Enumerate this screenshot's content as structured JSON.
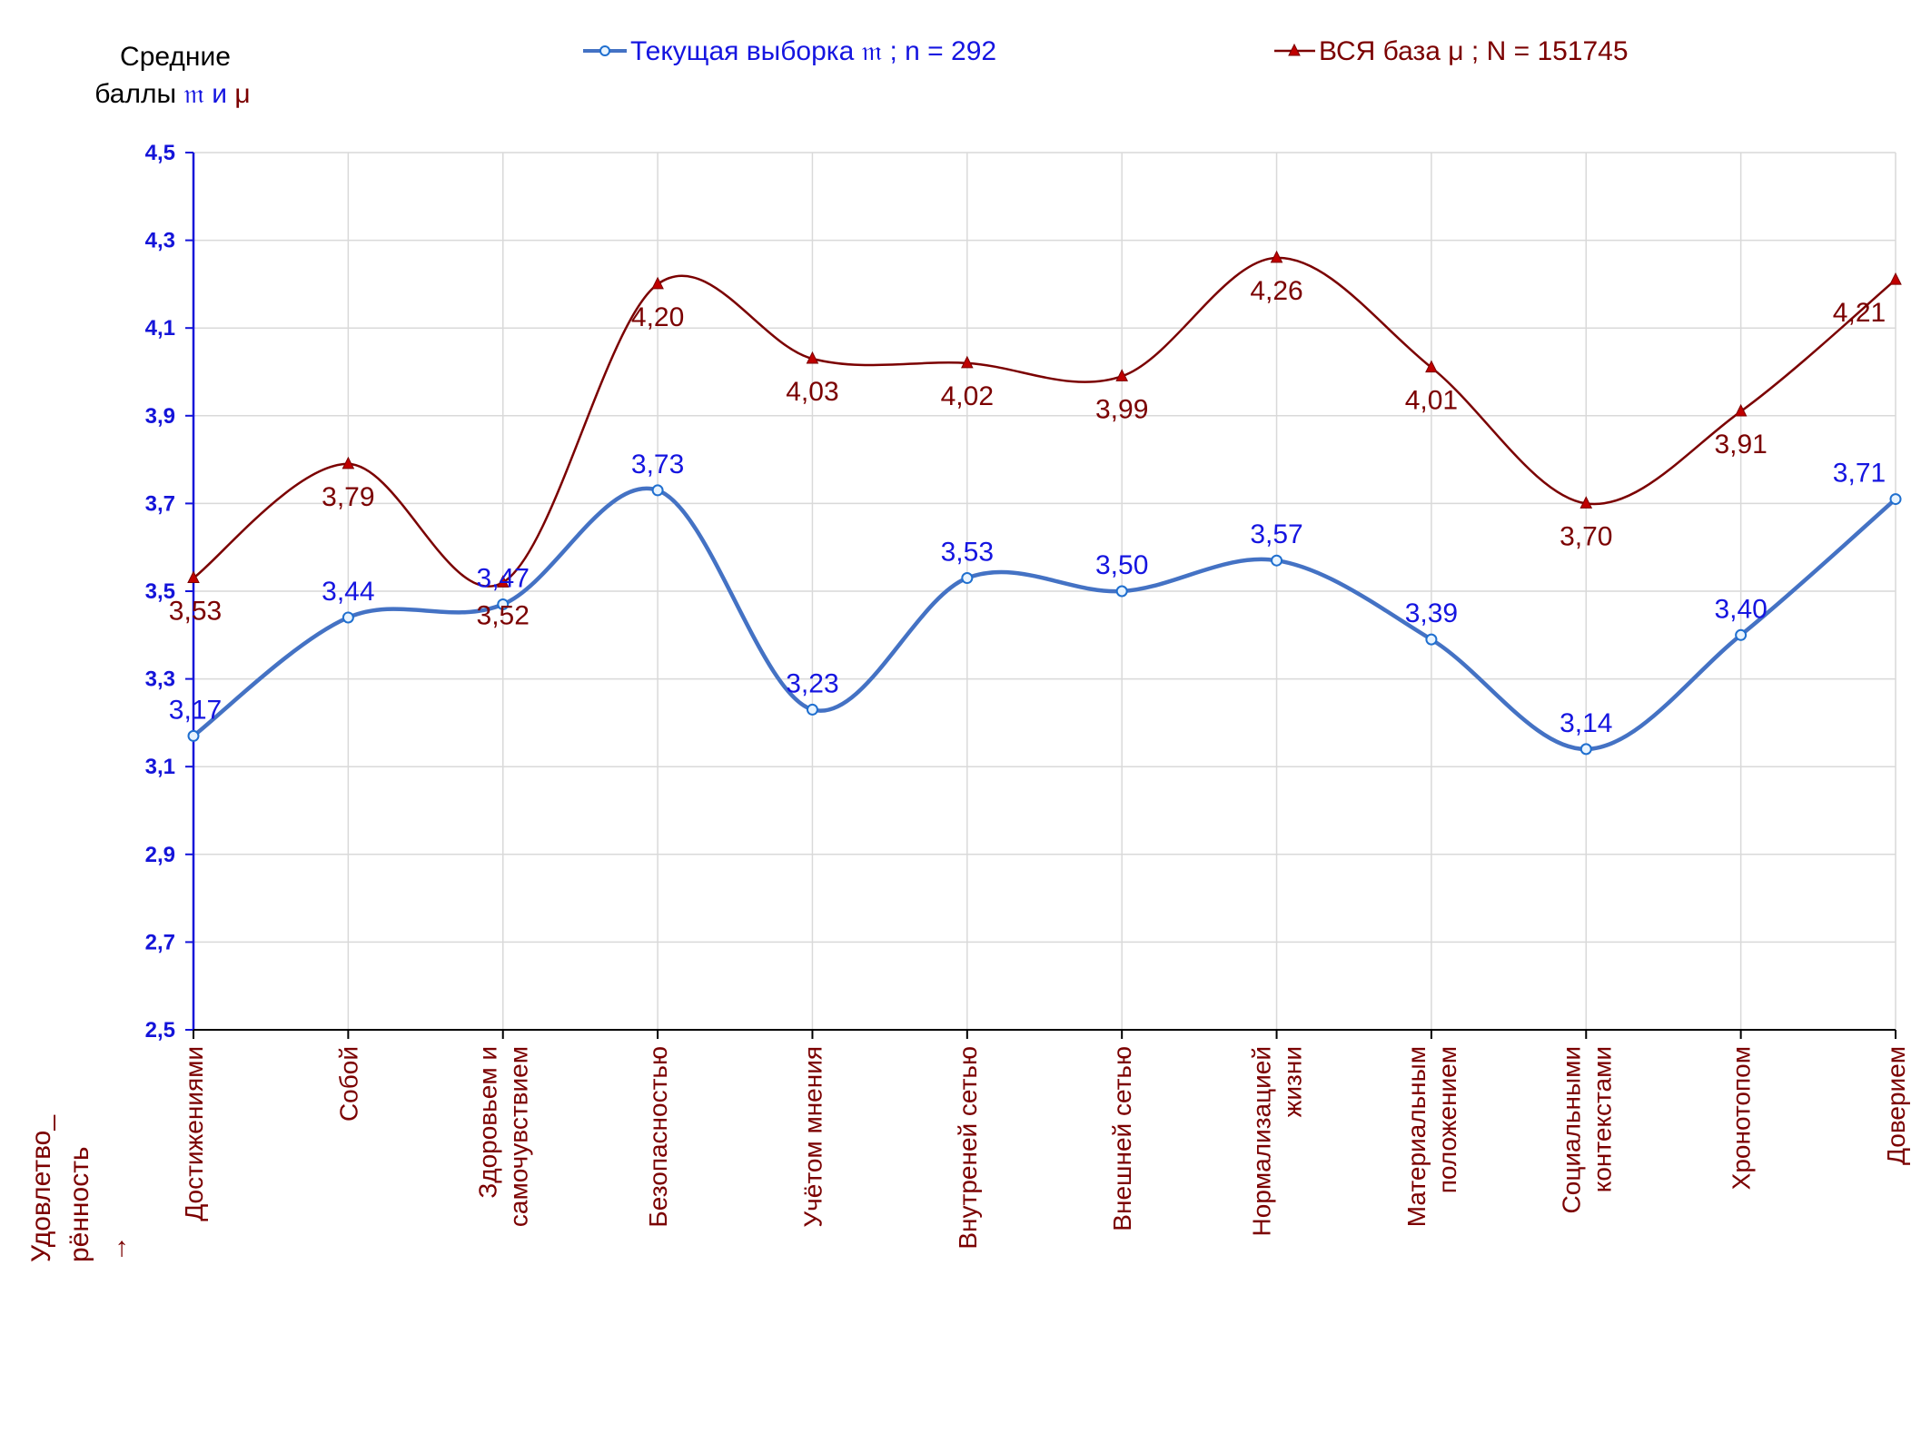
{
  "chart_data": {
    "type": "line",
    "categories": [
      [
        "Достижениями"
      ],
      [
        "Собой"
      ],
      [
        "Здоровьем и",
        "самочувствием"
      ],
      [
        "Безопасностью"
      ],
      [
        "Учётом мнения"
      ],
      [
        "Внутреней сетью"
      ],
      [
        "Внешней сетью"
      ],
      [
        "Нормализацией",
        "жизни"
      ],
      [
        "Материальным",
        "положением"
      ],
      [
        "Социальными",
        "контекстами"
      ],
      [
        "Хронотопом"
      ],
      [
        "Доверием"
      ]
    ],
    "series": [
      {
        "name": "Текущая выборка",
        "legend": [
          "Текущая выборка ",
          "𝔪",
          " ; n = 292"
        ],
        "color": "#4472c4",
        "label_color": "#1515e0",
        "marker": "circle",
        "values": [
          3.17,
          3.44,
          3.47,
          3.73,
          3.23,
          3.53,
          3.5,
          3.57,
          3.39,
          3.14,
          3.4,
          3.71
        ],
        "labels": [
          "3,17",
          "3,44",
          "3,47",
          "3,73",
          "3,23",
          "3,53",
          "3,50",
          "3,57",
          "3,39",
          "3,14",
          "3,40",
          "3,71"
        ]
      },
      {
        "name": "ВСЯ база",
        "legend": [
          "ВСЯ база μ ; N = 151745"
        ],
        "color": "#7b0000",
        "label_color": "#7b0000",
        "marker": "triangle",
        "values": [
          3.53,
          3.79,
          3.52,
          4.2,
          4.03,
          4.02,
          3.99,
          4.26,
          4.01,
          3.7,
          3.91,
          4.21
        ],
        "labels": [
          "3,53",
          "3,79",
          "3,52",
          "4,20",
          "4,03",
          "4,02",
          "3,99",
          "4,26",
          "4,01",
          "3,70",
          "3,91",
          "4,21"
        ]
      }
    ],
    "ylim": [
      2.5,
      4.5
    ],
    "yticks": [
      2.5,
      2.7,
      2.9,
      3.1,
      3.3,
      3.5,
      3.7,
      3.9,
      4.1,
      4.3,
      4.5
    ],
    "ytick_labels": [
      "2,5",
      "2,7",
      "2,9",
      "3,1",
      "3,3",
      "3,5",
      "3,7",
      "3,9",
      "4,1",
      "4,3",
      "4,5"
    ],
    "ylabel": {
      "line1": "Средние",
      "line2_prefix": "баллы ",
      "symbol_current": "𝔪",
      "conjunction": " и ",
      "symbol_all": "μ"
    },
    "xlabel": [
      "Удовлетво_",
      "рённость",
      "→"
    ],
    "grid": true,
    "legend_position": "top",
    "colors": {
      "axis": "#1414d9",
      "grid": "#d9d9d9",
      "category_text": "#7b0000"
    }
  }
}
